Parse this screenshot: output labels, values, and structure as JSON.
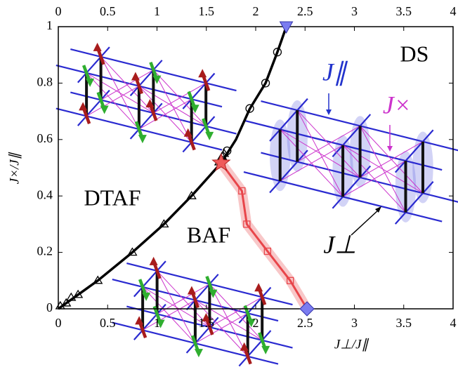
{
  "chart_data": {
    "type": "line",
    "xlabel": "J⊥/J∥",
    "ylabel": "J×/J∥",
    "xlim": [
      0,
      4
    ],
    "ylim": [
      0,
      1
    ],
    "xticks": [
      0,
      0.5,
      1,
      1.5,
      2,
      2.5,
      3,
      3.5,
      4
    ],
    "yticks": [
      0,
      0.2,
      0.4,
      0.6,
      0.8,
      1
    ],
    "series": [
      {
        "color": "#000000",
        "line": true,
        "marker": "none",
        "x": [
          0,
          0.2,
          0.4,
          0.75,
          1.07,
          1.35,
          1.65,
          1.8,
          1.94,
          2.1,
          2.22,
          2.31
        ],
        "y": [
          0,
          0.05,
          0.1,
          0.2,
          0.3,
          0.4,
          0.517,
          0.6,
          0.709,
          0.8,
          0.91,
          1.0
        ]
      },
      {
        "color": "#000000",
        "line": false,
        "marker": "triangle",
        "x": [
          0.02,
          0.08,
          0.13,
          0.2,
          0.4,
          0.75,
          1.07,
          1.35,
          1.63,
          1.66,
          1.68
        ],
        "y": [
          0.01,
          0.02,
          0.04,
          0.05,
          0.1,
          0.2,
          0.3,
          0.4,
          0.52,
          0.54,
          0.55
        ]
      },
      {
        "color": "#000000",
        "line": false,
        "marker": "circle",
        "x": [
          1.71,
          1.94,
          2.1,
          2.22
        ],
        "y": [
          0.56,
          0.71,
          0.8,
          0.91
        ]
      },
      {
        "color": "#e8454a",
        "line": true,
        "marker": "none",
        "x": [
          1.65,
          1.86,
          1.91,
          2.12,
          2.35,
          2.52
        ],
        "y": [
          0.517,
          0.418,
          0.3,
          0.204,
          0.1,
          0
        ]
      },
      {
        "color": "#e8454a",
        "line": false,
        "marker": "square",
        "x": [
          1.86,
          1.91,
          2.12,
          2.35
        ],
        "y": [
          0.418,
          0.3,
          0.204,
          0.1
        ]
      },
      {
        "color": "#ef5a5a",
        "line": false,
        "marker": "star",
        "x": [
          1.65
        ],
        "y": [
          0.517
        ]
      },
      {
        "color": "#7b7cf0",
        "line": false,
        "marker": "diamond",
        "x": [
          2.52
        ],
        "y": [
          0
        ]
      },
      {
        "color": "#7b7cf0",
        "line": false,
        "marker": "down-triangle",
        "x": [
          2.31
        ],
        "y": [
          1.0
        ]
      }
    ],
    "annotations": [
      "DS",
      "DTAF",
      "BAF",
      "J∥",
      "J×",
      "J⊥"
    ]
  }
}
